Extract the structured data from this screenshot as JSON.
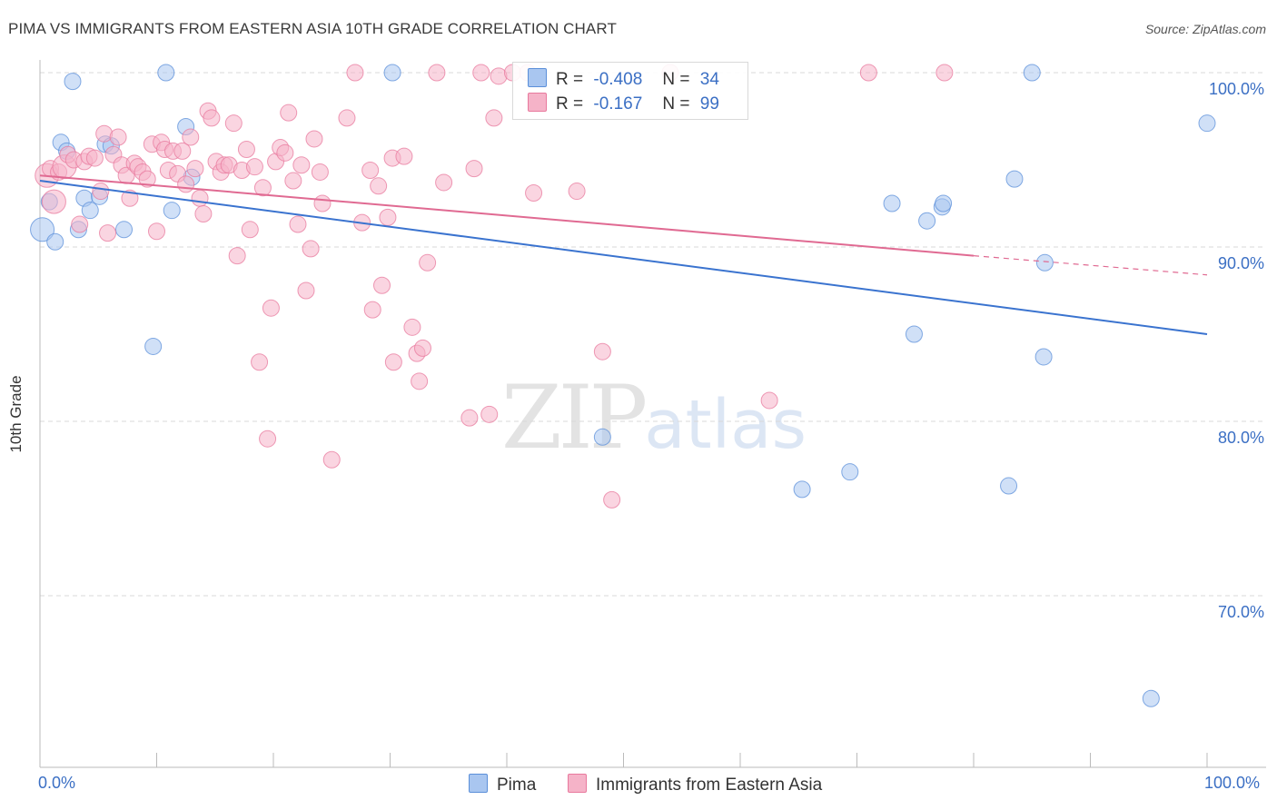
{
  "header": {
    "title": "PIMA VS IMMIGRANTS FROM EASTERN ASIA 10TH GRADE CORRELATION CHART",
    "source": "Source: ZipAtlas.com"
  },
  "legend": {
    "rows": [
      {
        "r_label": "R =",
        "r_value": "-0.408",
        "n_label": "N =",
        "n_value": "34",
        "color": "#a9c6f0"
      },
      {
        "r_label": "R =",
        "r_value": "-0.167",
        "n_label": "N =",
        "n_value": "99",
        "color": "#f5b3c8"
      }
    ]
  },
  "bottom_legend": {
    "items": [
      {
        "label": "Pima"
      },
      {
        "label": "Immigrants from Eastern Asia"
      }
    ]
  },
  "watermark": {
    "zip": "ZIP",
    "atlas": "atlas"
  },
  "chart_data": {
    "type": "scatter",
    "title": "PIMA VS IMMIGRANTS FROM EASTERN ASIA 10TH GRADE CORRELATION CHART",
    "xlabel": "",
    "ylabel": "10th Grade",
    "xlim": [
      0,
      105
    ],
    "ylim": [
      60,
      102
    ],
    "x_tick_labels": [
      "0.0%",
      "100.0%"
    ],
    "y_ticks": [
      100,
      90,
      80,
      70
    ],
    "y_tick_labels": [
      "100.0%",
      "90.0%",
      "80.0%",
      "70.0%"
    ],
    "grid": "horizontal dashed",
    "colors": {
      "pima": "#5b8fd9",
      "pima_fill": "#a9c6f0",
      "immig": "#e8799d",
      "immig_fill": "#f5b3c8",
      "tick_text": "#3b6fc4"
    },
    "series": [
      {
        "name": "Pima",
        "trend": {
          "x": [
            0,
            100
          ],
          "y": [
            93.8,
            85.0
          ],
          "dashed_from": null
        },
        "points": [
          [
            0.2,
            91.0
          ],
          [
            0.8,
            92.6
          ],
          [
            1.3,
            90.3
          ],
          [
            1.8,
            96.0
          ],
          [
            2.3,
            95.5
          ],
          [
            2.8,
            99.5
          ],
          [
            3.3,
            91.0
          ],
          [
            3.8,
            92.8
          ],
          [
            4.3,
            92.1
          ],
          [
            5.1,
            92.9
          ],
          [
            5.6,
            95.9
          ],
          [
            6.1,
            95.8
          ],
          [
            7.2,
            91.0
          ],
          [
            9.7,
            84.3
          ],
          [
            10.8,
            100.0
          ],
          [
            11.3,
            92.1
          ],
          [
            12.5,
            96.9
          ],
          [
            13.0,
            94.0
          ],
          [
            30.2,
            100.0
          ],
          [
            48.2,
            79.1
          ],
          [
            65.3,
            76.1
          ],
          [
            69.4,
            77.1
          ],
          [
            74.9,
            85.0
          ],
          [
            73.0,
            92.5
          ],
          [
            76.0,
            91.5
          ],
          [
            77.3,
            92.3
          ],
          [
            77.4,
            92.5
          ],
          [
            83.0,
            76.3
          ],
          [
            83.5,
            93.9
          ],
          [
            85.0,
            100.0
          ],
          [
            86.1,
            89.1
          ],
          [
            86.0,
            83.7
          ],
          [
            95.2,
            64.1
          ],
          [
            100.0,
            97.1
          ]
        ]
      },
      {
        "name": "Immigrants from Eastern Asia",
        "trend": {
          "x": [
            0,
            80
          ],
          "y": [
            94.1,
            89.5
          ],
          "dashed_from": 80,
          "dashed_to": [
            100,
            88.4
          ]
        },
        "points": [
          [
            0.6,
            94.1
          ],
          [
            0.9,
            94.5
          ],
          [
            1.2,
            92.6
          ],
          [
            1.6,
            94.3
          ],
          [
            2.1,
            94.6
          ],
          [
            2.4,
            95.3
          ],
          [
            2.9,
            95.0
          ],
          [
            3.4,
            91.3
          ],
          [
            3.8,
            94.9
          ],
          [
            4.2,
            95.2
          ],
          [
            4.7,
            95.1
          ],
          [
            5.2,
            93.2
          ],
          [
            5.5,
            96.5
          ],
          [
            5.8,
            90.8
          ],
          [
            6.3,
            95.3
          ],
          [
            6.7,
            96.3
          ],
          [
            7.0,
            94.7
          ],
          [
            7.4,
            94.1
          ],
          [
            7.7,
            92.8
          ],
          [
            8.1,
            94.8
          ],
          [
            8.4,
            94.6
          ],
          [
            8.8,
            94.3
          ],
          [
            9.2,
            93.9
          ],
          [
            9.6,
            95.9
          ],
          [
            10.0,
            90.9
          ],
          [
            10.4,
            96.0
          ],
          [
            10.7,
            95.6
          ],
          [
            11.0,
            94.4
          ],
          [
            11.4,
            95.5
          ],
          [
            11.8,
            94.2
          ],
          [
            12.2,
            95.5
          ],
          [
            12.5,
            93.6
          ],
          [
            12.9,
            96.3
          ],
          [
            13.3,
            94.5
          ],
          [
            13.7,
            92.8
          ],
          [
            14.0,
            91.9
          ],
          [
            14.4,
            97.8
          ],
          [
            14.7,
            97.4
          ],
          [
            15.1,
            94.9
          ],
          [
            15.5,
            94.3
          ],
          [
            15.8,
            94.7
          ],
          [
            16.2,
            94.7
          ],
          [
            16.6,
            97.1
          ],
          [
            16.9,
            89.5
          ],
          [
            17.3,
            94.4
          ],
          [
            17.7,
            95.6
          ],
          [
            18.0,
            91.0
          ],
          [
            18.4,
            94.6
          ],
          [
            18.8,
            83.4
          ],
          [
            19.1,
            93.4
          ],
          [
            19.5,
            79.0
          ],
          [
            19.8,
            86.5
          ],
          [
            20.2,
            94.9
          ],
          [
            20.6,
            95.7
          ],
          [
            21.0,
            95.4
          ],
          [
            21.3,
            97.7
          ],
          [
            21.7,
            93.8
          ],
          [
            22.1,
            91.3
          ],
          [
            22.4,
            94.7
          ],
          [
            22.8,
            87.5
          ],
          [
            23.2,
            89.9
          ],
          [
            23.5,
            96.2
          ],
          [
            24.0,
            94.3
          ],
          [
            24.2,
            92.5
          ],
          [
            25.0,
            77.8
          ],
          [
            26.3,
            97.4
          ],
          [
            27.0,
            100.0
          ],
          [
            27.6,
            91.4
          ],
          [
            28.3,
            94.4
          ],
          [
            28.5,
            86.4
          ],
          [
            29.0,
            93.5
          ],
          [
            29.3,
            87.8
          ],
          [
            29.8,
            91.7
          ],
          [
            30.2,
            95.1
          ],
          [
            30.3,
            83.4
          ],
          [
            31.2,
            95.2
          ],
          [
            31.9,
            85.4
          ],
          [
            32.3,
            83.9
          ],
          [
            32.5,
            82.3
          ],
          [
            32.8,
            84.2
          ],
          [
            33.2,
            89.1
          ],
          [
            34.0,
            100.0
          ],
          [
            34.6,
            93.7
          ],
          [
            36.8,
            80.2
          ],
          [
            37.2,
            94.5
          ],
          [
            37.8,
            100.0
          ],
          [
            38.5,
            80.4
          ],
          [
            38.9,
            97.4
          ],
          [
            39.3,
            99.8
          ],
          [
            40.5,
            100.0
          ],
          [
            42.3,
            93.1
          ],
          [
            46.0,
            93.2
          ],
          [
            48.2,
            84.0
          ],
          [
            49.0,
            75.5
          ],
          [
            54.0,
            100.0
          ],
          [
            62.5,
            81.2
          ],
          [
            71.0,
            100.0
          ],
          [
            77.5,
            100.0
          ],
          [
            41.8,
            100.0
          ]
        ]
      }
    ]
  }
}
